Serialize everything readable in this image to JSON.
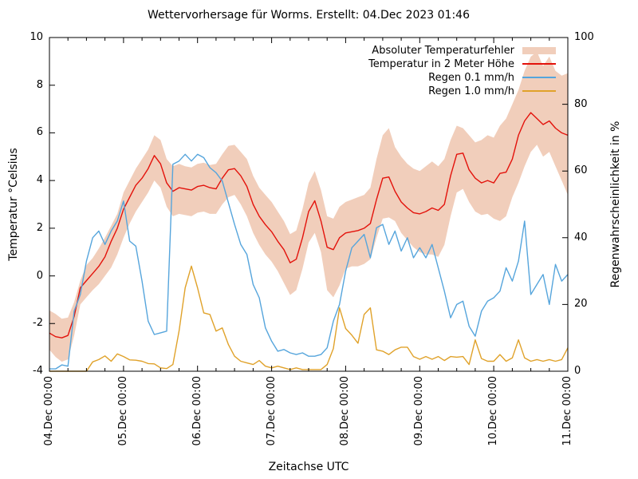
{
  "title": "Wettervorhersage für Worms. Erstellt: 04.Dec 2023 01:46",
  "axes": {
    "x": {
      "label": "Zeitachse UTC",
      "tick_labels": [
        "04.Dec 00:00",
        "05.Dec 00:00",
        "06.Dec 00:00",
        "07.Dec 00:00",
        "08.Dec 00:00",
        "09.Dec 00:00",
        "10.Dec 00:00",
        "11.Dec 00:00"
      ],
      "minor_ticks_per_day": 4
    },
    "y_left": {
      "label": "Temperatur °Celsius",
      "min": -4,
      "max": 10,
      "tick_values": [
        10,
        8,
        6,
        4,
        2,
        0,
        -2,
        -4
      ]
    },
    "y_right": {
      "label": "Regenwahrscheinlichkeit in %",
      "min": 0,
      "max": 100,
      "tick_values": [
        100,
        80,
        60,
        40,
        20,
        0
      ]
    }
  },
  "legend": {
    "items": [
      {
        "label": "Absoluter Temperaturfehler",
        "marker": "band",
        "color_key": "band"
      },
      {
        "label": "Temperatur in 2 Meter Höhe",
        "marker": "line",
        "color_key": "red"
      },
      {
        "label": "Regen 0.1 mm/h",
        "marker": "line",
        "color_key": "blue"
      },
      {
        "label": "Regen 1.0 mm/h",
        "marker": "line",
        "color_key": "orange"
      }
    ]
  },
  "colors": {
    "band": "#f1cebb",
    "red": "#e3120b",
    "blue": "#56a5dc",
    "orange": "#e0a22a",
    "frame": "#000000",
    "text": "#000000",
    "background": "#ffffff"
  },
  "chart_data": {
    "type": "line",
    "title": "Wettervorhersage für Worms. Erstellt: 04.Dec 2023 01:46",
    "xlabel": "Zeitachse UTC",
    "ylabel_left": "Temperatur °Celsius",
    "ylabel_right": "Regenwahrscheinlichkeit in %",
    "ylim_left": [
      -4,
      10
    ],
    "ylim_right": [
      0,
      100
    ],
    "grid": false,
    "legend_position": "top-right-inside",
    "x_unit": "hours since 04.Dec 2023 00:00 UTC",
    "x_start_hours": 0,
    "x_step_hours": 2,
    "x_range_hours": [
      0,
      168
    ],
    "series": [
      {
        "name": "Absoluter Temperaturfehler",
        "type": "band",
        "axis": "left",
        "color_key": "band",
        "upper": [
          -1.45,
          -1.6,
          -1.8,
          -1.75,
          -1.1,
          -0.2,
          0.45,
          0.75,
          1.15,
          1.6,
          2.1,
          2.6,
          3.5,
          4.0,
          4.5,
          4.9,
          5.3,
          5.9,
          5.7,
          4.9,
          4.6,
          4.7,
          4.6,
          4.55,
          4.7,
          4.75,
          4.65,
          4.7,
          5.1,
          5.45,
          5.5,
          5.2,
          4.9,
          4.2,
          3.7,
          3.4,
          3.1,
          2.7,
          2.3,
          1.75,
          1.9,
          2.8,
          3.9,
          4.4,
          3.6,
          2.5,
          2.4,
          2.9,
          3.1,
          3.2,
          3.3,
          3.4,
          3.7,
          4.9,
          5.9,
          6.2,
          5.4,
          5.0,
          4.7,
          4.5,
          4.4,
          4.6,
          4.8,
          4.6,
          4.9,
          5.7,
          6.3,
          6.2,
          5.9,
          5.6,
          5.7,
          5.9,
          5.8,
          6.3,
          6.6,
          7.2,
          7.8,
          8.6,
          9.2,
          9.4,
          8.8,
          9.2,
          8.6,
          8.4,
          8.5
        ],
        "lower": [
          -3.1,
          -3.4,
          -3.6,
          -3.5,
          -2.5,
          -1.2,
          -0.9,
          -0.6,
          -0.35,
          0.0,
          0.35,
          0.9,
          1.6,
          2.2,
          2.7,
          3.1,
          3.5,
          4.0,
          3.7,
          2.9,
          2.5,
          2.6,
          2.55,
          2.5,
          2.65,
          2.7,
          2.6,
          2.6,
          3.0,
          3.3,
          3.4,
          3.0,
          2.5,
          1.8,
          1.3,
          0.9,
          0.6,
          0.2,
          -0.3,
          -0.8,
          -0.6,
          0.3,
          1.4,
          1.8,
          1.0,
          -0.6,
          -0.9,
          -0.4,
          0.3,
          0.4,
          0.4,
          0.5,
          0.7,
          1.6,
          2.4,
          2.45,
          2.3,
          1.8,
          1.5,
          1.2,
          1.0,
          0.9,
          0.9,
          0.8,
          1.3,
          2.5,
          3.5,
          3.65,
          3.1,
          2.7,
          2.55,
          2.6,
          2.4,
          2.3,
          2.5,
          3.3,
          3.9,
          4.6,
          5.2,
          5.5,
          5.0,
          5.2,
          4.6,
          4.0,
          3.4
        ]
      },
      {
        "name": "Temperatur in 2 Meter Höhe",
        "type": "line",
        "axis": "left",
        "color_key": "red",
        "values": [
          -2.4,
          -2.55,
          -2.6,
          -2.5,
          -1.7,
          -0.5,
          -0.2,
          0.1,
          0.4,
          0.8,
          1.45,
          2.0,
          2.8,
          3.3,
          3.8,
          4.1,
          4.5,
          5.05,
          4.7,
          3.9,
          3.55,
          3.7,
          3.65,
          3.6,
          3.75,
          3.8,
          3.7,
          3.65,
          4.1,
          4.45,
          4.5,
          4.2,
          3.75,
          3.0,
          2.5,
          2.15,
          1.85,
          1.45,
          1.1,
          0.55,
          0.7,
          1.6,
          2.7,
          3.15,
          2.3,
          1.2,
          1.1,
          1.6,
          1.8,
          1.85,
          1.9,
          2.0,
          2.2,
          3.2,
          4.1,
          4.15,
          3.55,
          3.1,
          2.85,
          2.65,
          2.6,
          2.7,
          2.85,
          2.75,
          3.0,
          4.2,
          5.1,
          5.15,
          4.45,
          4.1,
          3.9,
          4.0,
          3.9,
          4.3,
          4.35,
          4.9,
          5.9,
          6.5,
          6.85,
          6.6,
          6.35,
          6.5,
          6.2,
          6.0,
          5.9
        ]
      },
      {
        "name": "Regen 0.1 mm/h",
        "type": "line",
        "axis": "right",
        "color_key": "blue",
        "values": [
          0.7,
          0.7,
          1.9,
          1.5,
          18,
          23,
          33,
          40,
          42,
          38,
          42,
          45,
          51,
          39,
          37.5,
          27,
          15,
          11,
          11.5,
          12,
          62,
          63,
          65,
          63,
          65,
          64,
          61,
          59.5,
          57,
          50.5,
          44,
          38,
          35,
          26,
          22,
          13,
          9,
          6,
          6.5,
          5.5,
          5,
          5.5,
          4.5,
          4.5,
          5,
          7,
          15,
          20,
          30,
          37,
          39,
          41,
          34,
          43,
          44,
          38,
          42,
          36,
          40,
          34,
          37,
          34,
          38,
          31,
          24,
          16,
          20,
          21,
          13.5,
          10.5,
          18,
          21,
          22,
          24,
          31,
          27,
          33,
          45,
          23,
          26,
          29,
          20,
          32,
          27,
          29
        ]
      },
      {
        "name": "Regen 1.0 mm/h",
        "type": "line",
        "axis": "right",
        "color_key": "orange",
        "values": [
          0,
          0,
          0,
          0,
          0,
          0,
          0,
          2.8,
          3.5,
          4.6,
          3.0,
          5.2,
          4.4,
          3.4,
          3.3,
          3.0,
          2.3,
          2.2,
          1.0,
          0.8,
          2.0,
          12,
          25,
          31.5,
          25,
          17.5,
          17,
          12,
          13,
          8,
          4.5,
          3,
          2.5,
          2,
          3.2,
          1.5,
          1,
          1.5,
          1,
          0.5,
          1,
          0.5,
          0.5,
          0.5,
          0.5,
          2,
          6.8,
          19,
          12.8,
          10.8,
          8.4,
          17,
          19,
          6.4,
          6,
          5,
          6.4,
          7.2,
          7.2,
          4.4,
          3.6,
          4.4,
          3.6,
          4.4,
          3.2,
          4.4,
          4.2,
          4.4,
          2,
          9.4,
          3.8,
          3,
          3,
          5,
          3,
          4,
          9.4,
          4,
          3,
          3.5,
          3,
          3.5,
          3,
          3.5,
          7
        ]
      }
    ]
  }
}
